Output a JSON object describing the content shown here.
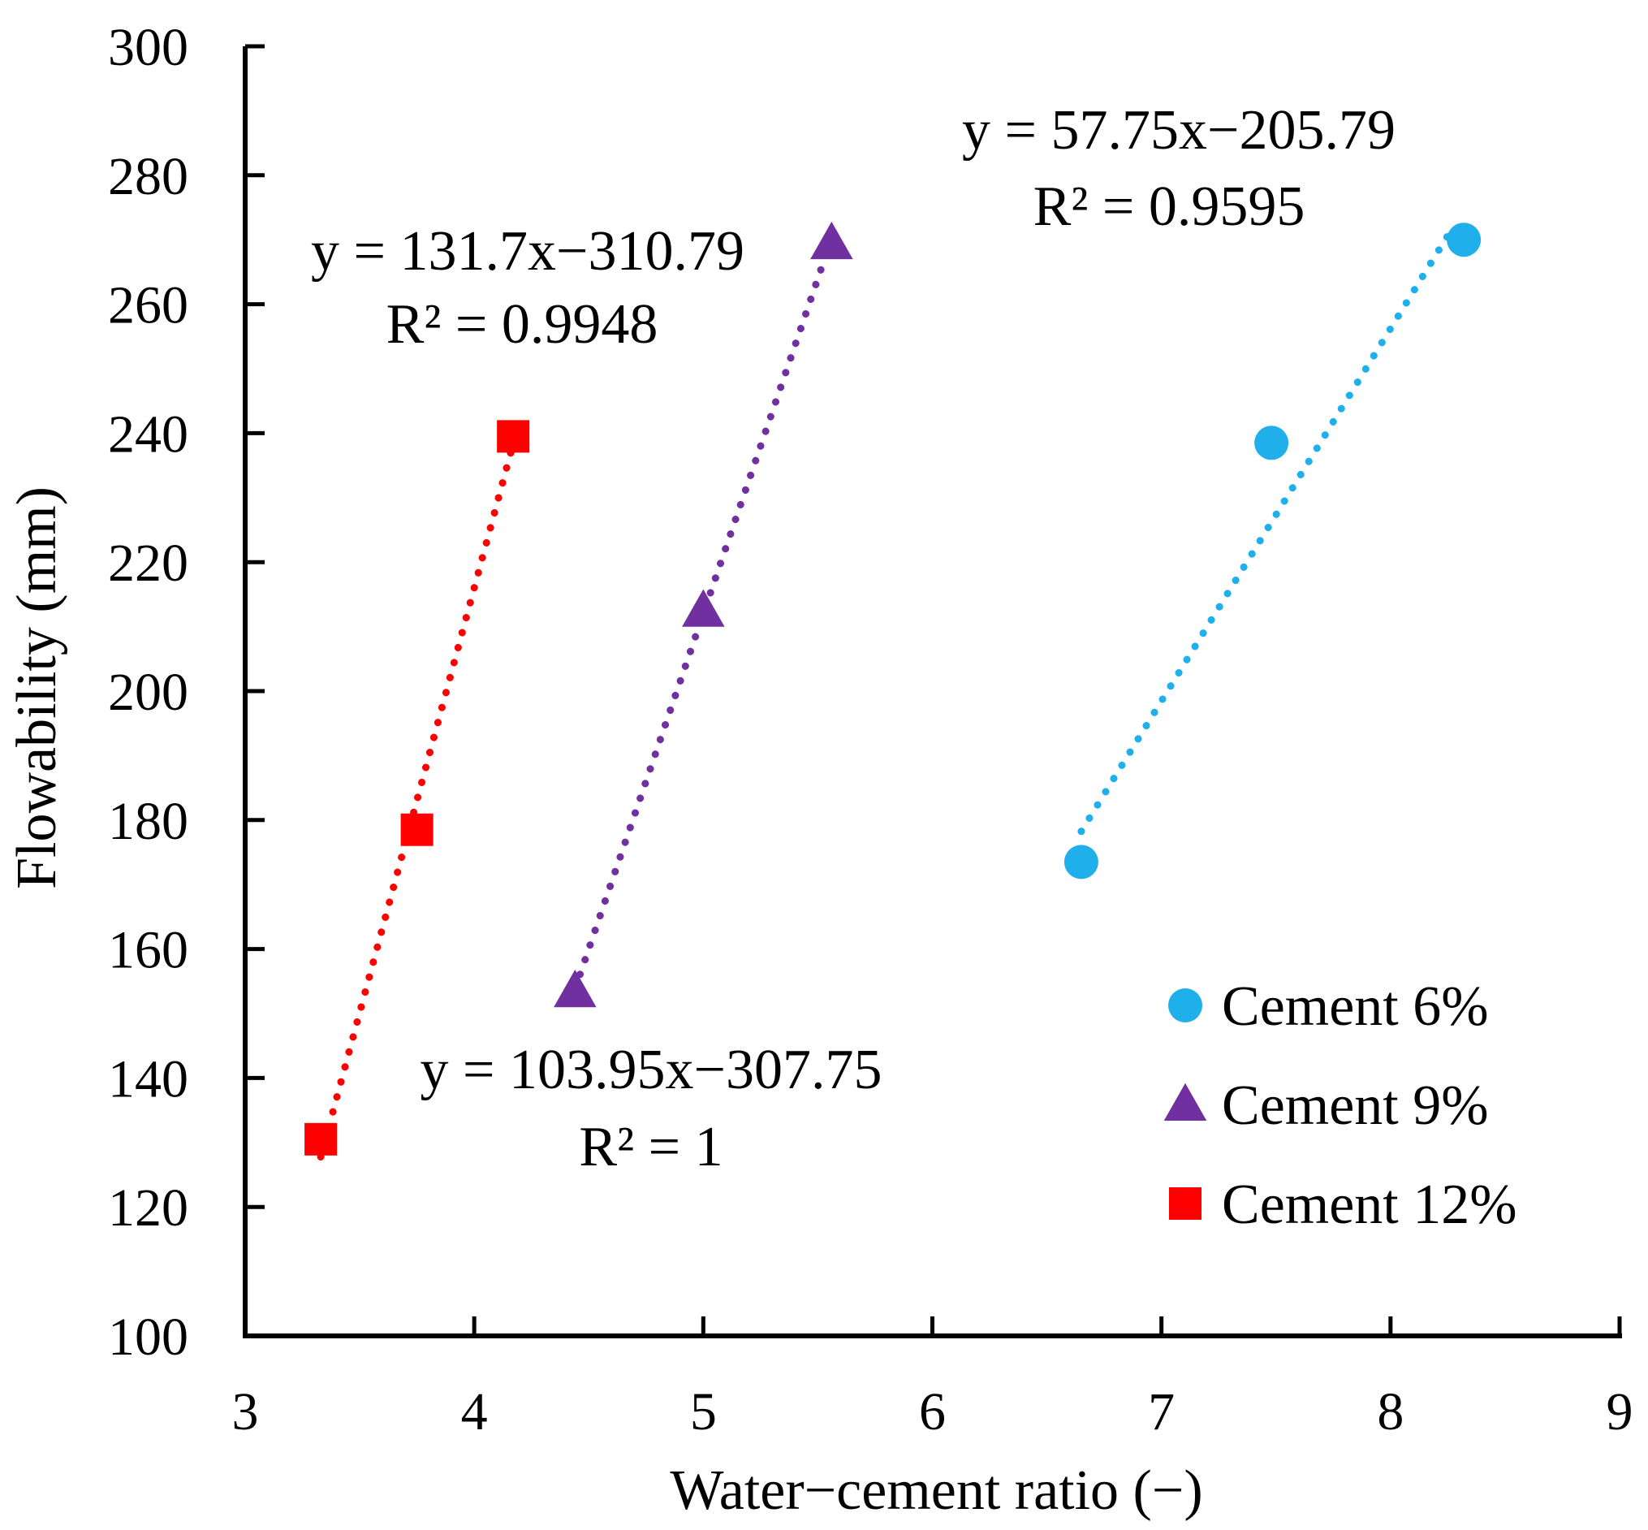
{
  "chart_data": {
    "type": "scatter",
    "title": "",
    "xlabel": "Water−cement ratio (−)",
    "ylabel": "Flowability (mm)",
    "xlim": [
      3,
      9
    ],
    "ylim": [
      100,
      300
    ],
    "xticks": [
      3,
      4,
      5,
      6,
      7,
      8,
      9
    ],
    "yticks": [
      100,
      120,
      140,
      160,
      180,
      200,
      220,
      240,
      260,
      280,
      300
    ],
    "grid": false,
    "legend_position": "bottom-right",
    "series": [
      {
        "name": "Cement 6%",
        "marker": "circle",
        "color": "#1fb0ec",
        "x": [
          6.65,
          7.48,
          8.32
        ],
        "y": [
          173.5,
          238.5,
          270
        ],
        "trendline": {
          "slope": 57.75,
          "intercept": -205.79,
          "x_from": 6.65,
          "x_to": 8.28
        },
        "equation": "y = 57.75x−205.79",
        "r2": "R² = 0.9595"
      },
      {
        "name": "Cement 9%",
        "marker": "triangle",
        "color": "#7030a0",
        "x": [
          4.44,
          5.0,
          5.56
        ],
        "y": [
          153.5,
          212.5,
          269.5
        ],
        "trendline": {
          "slope": 103.95,
          "intercept": -307.75,
          "x_from": 4.44,
          "x_to": 5.56
        },
        "equation": "y = 103.95x−307.75",
        "r2": "R² = 1"
      },
      {
        "name": "Cement 12%",
        "marker": "square",
        "color": "#ff0000",
        "x": [
          3.33,
          3.75,
          4.17
        ],
        "y": [
          130.5,
          178.5,
          239.5
        ],
        "trendline": {
          "slope": 131.7,
          "intercept": -310.79,
          "x_from": 3.33,
          "x_to": 4.19
        },
        "equation": "y = 131.7x−310.79",
        "r2": "R² = 0.9948"
      }
    ]
  }
}
